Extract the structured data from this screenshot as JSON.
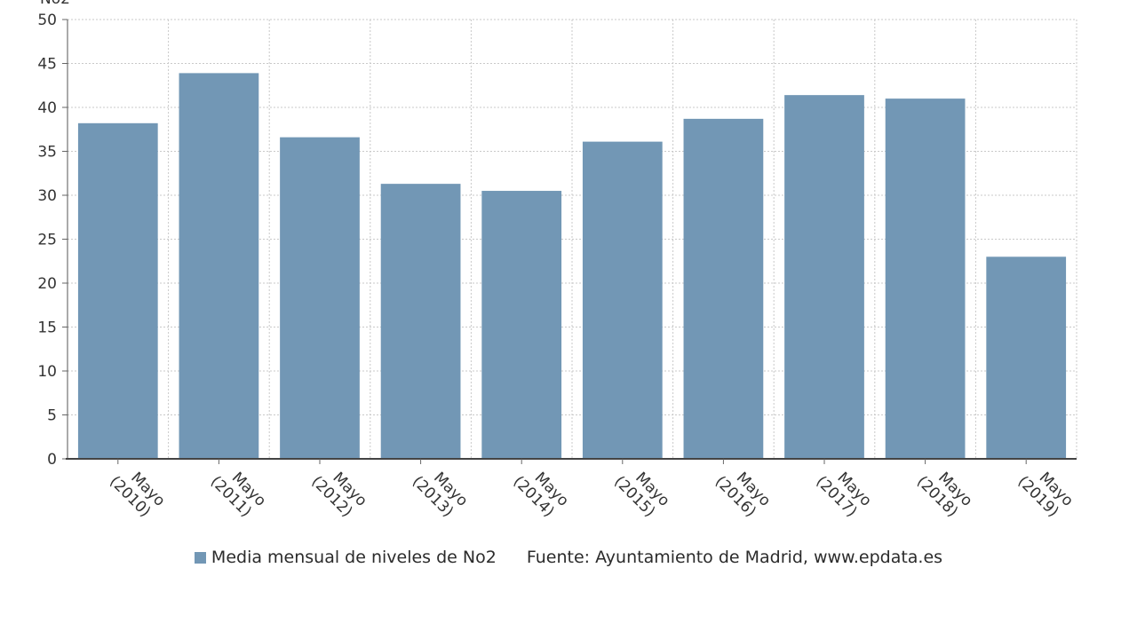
{
  "chart_data": {
    "type": "bar",
    "ylabel": "No2",
    "ylim": [
      0,
      50
    ],
    "yticks": [
      0,
      5,
      10,
      15,
      20,
      25,
      30,
      35,
      40,
      45,
      50
    ],
    "grid": true,
    "categories": [
      [
        "Mayo",
        "(2010)"
      ],
      [
        "Mayo",
        "(2011)"
      ],
      [
        "Mayo",
        "(2012)"
      ],
      [
        "Mayo",
        "(2013)"
      ],
      [
        "Mayo",
        "(2014)"
      ],
      [
        "Mayo",
        "(2015)"
      ],
      [
        "Mayo",
        "(2016)"
      ],
      [
        "Mayo",
        "(2017)"
      ],
      [
        "Mayo",
        "(2018)"
      ],
      [
        "Mayo",
        "(2019)"
      ]
    ],
    "series": [
      {
        "name": "Media mensual de niveles de No2",
        "color": "#7297b5",
        "values": [
          38.2,
          43.9,
          36.6,
          31.3,
          30.5,
          36.1,
          38.7,
          41.4,
          41.0,
          23.0
        ]
      }
    ],
    "legend_placement": "bottom",
    "source": "Fuente: Ayuntamiento de Madrid, www.epdata.es"
  }
}
